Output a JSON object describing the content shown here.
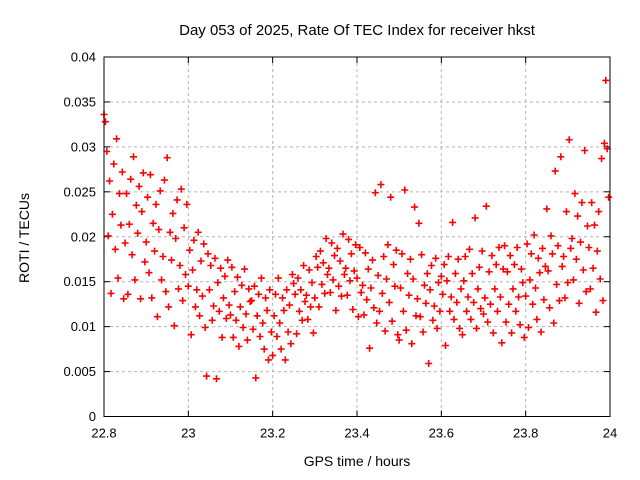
{
  "title": "Day 053 of 2025, Rate Of TEC Index for receiver hkst",
  "colors": {
    "background": "#ffffff",
    "text": "#000000",
    "axis": "#000000",
    "grid": "#b4b4b4",
    "marker": "#ff0000"
  },
  "chart_data": {
    "type": "scatter",
    "title": "Day 053 of 2025, Rate Of TEC Index for receiver hkst",
    "xlabel": "GPS time / hours",
    "ylabel": "ROTI / TECUs",
    "xlim": [
      22.8,
      24
    ],
    "ylim": [
      0,
      0.04
    ],
    "xticks": [
      22.8,
      23,
      23.2,
      23.4,
      23.6,
      23.8,
      24
    ],
    "xtick_labels": [
      "22.8",
      "23",
      "23.2",
      "23.4",
      "23.6",
      "23.8",
      "24"
    ],
    "yticks": [
      0,
      0.005,
      0.01,
      0.015,
      0.02,
      0.025,
      0.03,
      0.035,
      0.04
    ],
    "ytick_labels": [
      "0",
      "0.005",
      "0.01",
      "0.015",
      "0.02",
      "0.025",
      "0.03",
      "0.035",
      "0.04"
    ],
    "grid": true,
    "legend": "none",
    "marker": "plus",
    "marker_color": "#ff0000",
    "points": [
      [
        22.8,
        0.0336
      ],
      [
        22.8033,
        0.0328
      ],
      [
        22.8067,
        0.0295
      ],
      [
        22.81,
        0.0201
      ],
      [
        22.8133,
        0.0262
      ],
      [
        22.8167,
        0.0137
      ],
      [
        22.82,
        0.0225
      ],
      [
        22.8233,
        0.0281
      ],
      [
        22.8267,
        0.0186
      ],
      [
        22.83,
        0.0309
      ],
      [
        22.8333,
        0.0154
      ],
      [
        22.8367,
        0.0248
      ],
      [
        22.84,
        0.0213
      ],
      [
        22.8433,
        0.0272
      ],
      [
        22.8467,
        0.0131
      ],
      [
        22.85,
        0.0193
      ],
      [
        22.8533,
        0.0248
      ],
      [
        22.8567,
        0.0136
      ],
      [
        22.86,
        0.0214
      ],
      [
        22.8633,
        0.0264
      ],
      [
        22.8667,
        0.018
      ],
      [
        22.87,
        0.0289
      ],
      [
        22.8733,
        0.0152
      ],
      [
        22.8767,
        0.0235
      ],
      [
        22.88,
        0.0204
      ],
      [
        22.8833,
        0.0256
      ],
      [
        22.8867,
        0.0131
      ],
      [
        22.89,
        0.0228
      ],
      [
        22.8933,
        0.0271
      ],
      [
        22.8967,
        0.0172
      ],
      [
        22.9,
        0.0194
      ],
      [
        22.9033,
        0.0244
      ],
      [
        22.9067,
        0.016
      ],
      [
        22.91,
        0.0269
      ],
      [
        22.9133,
        0.0132
      ],
      [
        22.9167,
        0.0215
      ],
      [
        22.92,
        0.0184
      ],
      [
        22.9233,
        0.0236
      ],
      [
        22.9267,
        0.0111
      ],
      [
        22.93,
        0.0208
      ],
      [
        22.9333,
        0.0251
      ],
      [
        22.9367,
        0.0152
      ],
      [
        22.94,
        0.0178
      ],
      [
        22.9433,
        0.0263
      ],
      [
        22.9467,
        0.0139
      ],
      [
        22.95,
        0.0288
      ],
      [
        22.9533,
        0.0122
      ],
      [
        22.9567,
        0.0205
      ],
      [
        22.96,
        0.0174
      ],
      [
        22.9633,
        0.0226
      ],
      [
        22.9667,
        0.0101
      ],
      [
        22.97,
        0.0198
      ],
      [
        22.9733,
        0.0241
      ],
      [
        22.9767,
        0.0142
      ],
      [
        22.98,
        0.0168
      ],
      [
        22.9833,
        0.0253
      ],
      [
        22.9867,
        0.0129
      ],
      [
        22.99,
        0.021
      ],
      [
        22.9933,
        0.0158
      ],
      [
        22.9967,
        0.0236
      ],
      [
        23.0,
        0.0145
      ],
      [
        23.0033,
        0.0185
      ],
      [
        23.0067,
        0.0091
      ],
      [
        23.01,
        0.0163
      ],
      [
        23.0133,
        0.0196
      ],
      [
        23.0167,
        0.0122
      ],
      [
        23.02,
        0.0141
      ],
      [
        23.0233,
        0.0205
      ],
      [
        23.0267,
        0.0112
      ],
      [
        23.03,
        0.0173
      ],
      [
        23.0333,
        0.0134
      ],
      [
        23.0367,
        0.0192
      ],
      [
        23.04,
        0.0099
      ],
      [
        23.0433,
        0.0045
      ],
      [
        23.0467,
        0.0181
      ],
      [
        23.05,
        0.0141
      ],
      [
        23.0533,
        0.0168
      ],
      [
        23.0567,
        0.0107
      ],
      [
        23.06,
        0.0123
      ],
      [
        23.0633,
        0.0176
      ],
      [
        23.0667,
        0.0042
      ],
      [
        23.07,
        0.0149
      ],
      [
        23.0733,
        0.0117
      ],
      [
        23.0767,
        0.0165
      ],
      [
        23.08,
        0.0088
      ],
      [
        23.0833,
        0.0132
      ],
      [
        23.0867,
        0.0156
      ],
      [
        23.09,
        0.0109
      ],
      [
        23.0933,
        0.0174
      ],
      [
        23.0967,
        0.0124
      ],
      [
        23.1,
        0.0113
      ],
      [
        23.1033,
        0.0166
      ],
      [
        23.1067,
        0.0088
      ],
      [
        23.11,
        0.0139
      ],
      [
        23.1133,
        0.0107
      ],
      [
        23.1167,
        0.0155
      ],
      [
        23.12,
        0.0078
      ],
      [
        23.1233,
        0.0122
      ],
      [
        23.1267,
        0.0146
      ],
      [
        23.13,
        0.0099
      ],
      [
        23.1333,
        0.0164
      ],
      [
        23.1367,
        0.0114
      ],
      [
        23.14,
        0.0085
      ],
      [
        23.1433,
        0.0142
      ],
      [
        23.1467,
        0.0128
      ],
      [
        23.15,
        0.0129
      ],
      [
        23.1533,
        0.0097
      ],
      [
        23.1567,
        0.0145
      ],
      [
        23.16,
        0.0043
      ],
      [
        23.1633,
        0.0112
      ],
      [
        23.1667,
        0.0136
      ],
      [
        23.17,
        0.0089
      ],
      [
        23.1733,
        0.0154
      ],
      [
        23.1767,
        0.0104
      ],
      [
        23.18,
        0.0075
      ],
      [
        23.1833,
        0.0132
      ],
      [
        23.1867,
        0.0118
      ],
      [
        23.19,
        0.0063
      ],
      [
        23.1933,
        0.0141
      ],
      [
        23.1967,
        0.0094
      ],
      [
        23.2,
        0.0068
      ],
      [
        23.2033,
        0.0112
      ],
      [
        23.2067,
        0.0136
      ],
      [
        23.21,
        0.0089
      ],
      [
        23.2133,
        0.0154
      ],
      [
        23.2167,
        0.0104
      ],
      [
        23.22,
        0.0075
      ],
      [
        23.2233,
        0.0132
      ],
      [
        23.2267,
        0.0118
      ],
      [
        23.23,
        0.0063
      ],
      [
        23.2333,
        0.0141
      ],
      [
        23.2367,
        0.0094
      ],
      [
        23.24,
        0.0124
      ],
      [
        23.2433,
        0.0081
      ],
      [
        23.2467,
        0.0158
      ],
      [
        23.25,
        0.0148
      ],
      [
        23.2533,
        0.0136
      ],
      [
        23.2567,
        0.0092
      ],
      [
        23.26,
        0.0154
      ],
      [
        23.2633,
        0.0117
      ],
      [
        23.2667,
        0.0141
      ],
      [
        23.27,
        0.0107
      ],
      [
        23.2733,
        0.0168
      ],
      [
        23.2767,
        0.0128
      ],
      [
        23.28,
        0.0135
      ],
      [
        23.2833,
        0.0108
      ],
      [
        23.2867,
        0.0163
      ],
      [
        23.29,
        0.0122
      ],
      [
        23.2933,
        0.0149
      ],
      [
        23.2967,
        0.0093
      ],
      [
        23.3,
        0.0132
      ],
      [
        23.3033,
        0.0178
      ],
      [
        23.3067,
        0.0166
      ],
      [
        23.31,
        0.0122
      ],
      [
        23.3133,
        0.0184
      ],
      [
        23.3167,
        0.0147
      ],
      [
        23.32,
        0.0171
      ],
      [
        23.3233,
        0.0137
      ],
      [
        23.3267,
        0.0198
      ],
      [
        23.33,
        0.0158
      ],
      [
        23.3333,
        0.0165
      ],
      [
        23.3367,
        0.0138
      ],
      [
        23.34,
        0.0193
      ],
      [
        23.3433,
        0.0152
      ],
      [
        23.3467,
        0.0179
      ],
      [
        23.35,
        0.0118
      ],
      [
        23.3533,
        0.0187
      ],
      [
        23.3567,
        0.0145
      ],
      [
        23.36,
        0.0173
      ],
      [
        23.3633,
        0.0134
      ],
      [
        23.3667,
        0.0203
      ],
      [
        23.37,
        0.0158
      ],
      [
        23.3733,
        0.0165
      ],
      [
        23.3767,
        0.0135
      ],
      [
        23.38,
        0.0197
      ],
      [
        23.3833,
        0.0151
      ],
      [
        23.3867,
        0.0181
      ],
      [
        23.39,
        0.0119
      ],
      [
        23.3933,
        0.0162
      ],
      [
        23.3967,
        0.0191
      ],
      [
        23.4,
        0.0154
      ],
      [
        23.4033,
        0.0111
      ],
      [
        23.4067,
        0.0188
      ],
      [
        23.41,
        0.0138
      ],
      [
        23.4133,
        0.0146
      ],
      [
        23.4167,
        0.0113
      ],
      [
        23.42,
        0.0182
      ],
      [
        23.4233,
        0.013
      ],
      [
        23.4267,
        0.0164
      ],
      [
        23.43,
        0.0076
      ],
      [
        23.4333,
        0.0143
      ],
      [
        23.4367,
        0.0174
      ],
      [
        23.44,
        0.0121
      ],
      [
        23.4433,
        0.0249
      ],
      [
        23.4467,
        0.0104
      ],
      [
        23.45,
        0.0157
      ],
      [
        23.4533,
        0.0117
      ],
      [
        23.4567,
        0.0258
      ],
      [
        23.46,
        0.0137
      ],
      [
        23.4633,
        0.0178
      ],
      [
        23.4667,
        0.0095
      ],
      [
        23.47,
        0.0153
      ],
      [
        23.4733,
        0.0191
      ],
      [
        23.4767,
        0.0127
      ],
      [
        23.48,
        0.0244
      ],
      [
        23.4833,
        0.0106
      ],
      [
        23.4867,
        0.0169
      ],
      [
        23.49,
        0.0145
      ],
      [
        23.4933,
        0.0185
      ],
      [
        23.4967,
        0.0091
      ],
      [
        23.5,
        0.0085
      ],
      [
        23.5033,
        0.0143
      ],
      [
        23.5067,
        0.0181
      ],
      [
        23.51,
        0.0117
      ],
      [
        23.5133,
        0.0252
      ],
      [
        23.5167,
        0.0096
      ],
      [
        23.52,
        0.0159
      ],
      [
        23.5233,
        0.0135
      ],
      [
        23.5267,
        0.0175
      ],
      [
        23.53,
        0.0081
      ],
      [
        23.5333,
        0.0153
      ],
      [
        23.5367,
        0.0233
      ],
      [
        23.54,
        0.0112
      ],
      [
        23.5433,
        0.0131
      ],
      [
        23.5467,
        0.0215
      ],
      [
        23.55,
        0.0111
      ],
      [
        23.5533,
        0.018
      ],
      [
        23.5567,
        0.0094
      ],
      [
        23.56,
        0.0146
      ],
      [
        23.5633,
        0.0126
      ],
      [
        23.5667,
        0.0159
      ],
      [
        23.57,
        0.0059
      ],
      [
        23.5733,
        0.0141
      ],
      [
        23.5767,
        0.0168
      ],
      [
        23.58,
        0.0107
      ],
      [
        23.5833,
        0.0123
      ],
      [
        23.5867,
        0.0176
      ],
      [
        23.59,
        0.0098
      ],
      [
        23.5933,
        0.0149
      ],
      [
        23.5967,
        0.0117
      ],
      [
        23.6,
        0.0156
      ],
      [
        23.6033,
        0.0136
      ],
      [
        23.6067,
        0.0169
      ],
      [
        23.61,
        0.0079
      ],
      [
        23.6133,
        0.0151
      ],
      [
        23.6167,
        0.0178
      ],
      [
        23.62,
        0.0117
      ],
      [
        23.6233,
        0.0133
      ],
      [
        23.6267,
        0.0216
      ],
      [
        23.63,
        0.0108
      ],
      [
        23.6333,
        0.0159
      ],
      [
        23.6367,
        0.0127
      ],
      [
        23.64,
        0.0175
      ],
      [
        23.6433,
        0.0098
      ],
      [
        23.6467,
        0.0142
      ],
      [
        23.65,
        0.0091
      ],
      [
        23.6533,
        0.0151
      ],
      [
        23.6567,
        0.0178
      ],
      [
        23.66,
        0.0117
      ],
      [
        23.6633,
        0.0133
      ],
      [
        23.6667,
        0.0186
      ],
      [
        23.67,
        0.0108
      ],
      [
        23.6733,
        0.0159
      ],
      [
        23.6767,
        0.0127
      ],
      [
        23.68,
        0.0221
      ],
      [
        23.6833,
        0.0098
      ],
      [
        23.6867,
        0.0142
      ],
      [
        23.69,
        0.0166
      ],
      [
        23.6933,
        0.012
      ],
      [
        23.6967,
        0.0184
      ],
      [
        23.7,
        0.0114
      ],
      [
        23.7033,
        0.0132
      ],
      [
        23.7067,
        0.0234
      ],
      [
        23.71,
        0.0105
      ],
      [
        23.7133,
        0.0161
      ],
      [
        23.7167,
        0.0125
      ],
      [
        23.72,
        0.0179
      ],
      [
        23.7233,
        0.0093
      ],
      [
        23.7267,
        0.0142
      ],
      [
        23.73,
        0.0169
      ],
      [
        23.7333,
        0.0117
      ],
      [
        23.7367,
        0.0188
      ],
      [
        23.74,
        0.0133
      ],
      [
        23.7433,
        0.0082
      ],
      [
        23.7467,
        0.0164
      ],
      [
        23.75,
        0.019
      ],
      [
        23.7533,
        0.0105
      ],
      [
        23.7567,
        0.0161
      ],
      [
        23.76,
        0.0125
      ],
      [
        23.7633,
        0.0179
      ],
      [
        23.7667,
        0.0093
      ],
      [
        23.77,
        0.0142
      ],
      [
        23.7733,
        0.0169
      ],
      [
        23.7767,
        0.0117
      ],
      [
        23.78,
        0.0188
      ],
      [
        23.7833,
        0.0133
      ],
      [
        23.7867,
        0.0102
      ],
      [
        23.79,
        0.0164
      ],
      [
        23.7933,
        0.0149
      ],
      [
        23.7967,
        0.0088
      ],
      [
        23.8,
        0.0134
      ],
      [
        23.8033,
        0.0192
      ],
      [
        23.8067,
        0.0099
      ],
      [
        23.81,
        0.0152
      ],
      [
        23.8133,
        0.0181
      ],
      [
        23.8167,
        0.0125
      ],
      [
        23.82,
        0.0202
      ],
      [
        23.8233,
        0.0143
      ],
      [
        23.8267,
        0.0108
      ],
      [
        23.83,
        0.0176
      ],
      [
        23.8333,
        0.016
      ],
      [
        23.8367,
        0.0094
      ],
      [
        23.84,
        0.0187
      ],
      [
        23.8433,
        0.013
      ],
      [
        23.8467,
        0.0167
      ],
      [
        23.85,
        0.0231
      ],
      [
        23.8533,
        0.0162
      ],
      [
        23.8567,
        0.0121
      ],
      [
        23.86,
        0.0201
      ],
      [
        23.8633,
        0.0181
      ],
      [
        23.8667,
        0.0104
      ],
      [
        23.87,
        0.0273
      ],
      [
        23.8733,
        0.0147
      ],
      [
        23.8767,
        0.019
      ],
      [
        23.88,
        0.0129
      ],
      [
        23.8833,
        0.0289
      ],
      [
        23.8867,
        0.0167
      ],
      [
        23.89,
        0.0178
      ],
      [
        23.8933,
        0.0132
      ],
      [
        23.8967,
        0.0228
      ],
      [
        23.9,
        0.0149
      ],
      [
        23.9033,
        0.0308
      ],
      [
        23.9067,
        0.0187
      ],
      [
        23.91,
        0.0198
      ],
      [
        23.9133,
        0.0152
      ],
      [
        23.9167,
        0.0248
      ],
      [
        23.92,
        0.0175
      ],
      [
        23.9233,
        0.0223
      ],
      [
        23.9267,
        0.0126
      ],
      [
        23.93,
        0.0194
      ],
      [
        23.9333,
        0.0238
      ],
      [
        23.9367,
        0.0163
      ],
      [
        23.94,
        0.0296
      ],
      [
        23.9433,
        0.0139
      ],
      [
        23.9467,
        0.0212
      ],
      [
        23.95,
        0.0188
      ],
      [
        23.9533,
        0.0142
      ],
      [
        23.9567,
        0.0238
      ],
      [
        23.96,
        0.0165
      ],
      [
        23.9633,
        0.0213
      ],
      [
        23.9667,
        0.0116
      ],
      [
        23.97,
        0.0184
      ],
      [
        23.9733,
        0.0228
      ],
      [
        23.9767,
        0.0153
      ],
      [
        23.98,
        0.0287
      ],
      [
        23.9833,
        0.0129
      ],
      [
        23.9867,
        0.0304
      ],
      [
        23.99,
        0.0374
      ],
      [
        23.9933,
        0.0298
      ],
      [
        23.9967,
        0.0244
      ]
    ]
  }
}
